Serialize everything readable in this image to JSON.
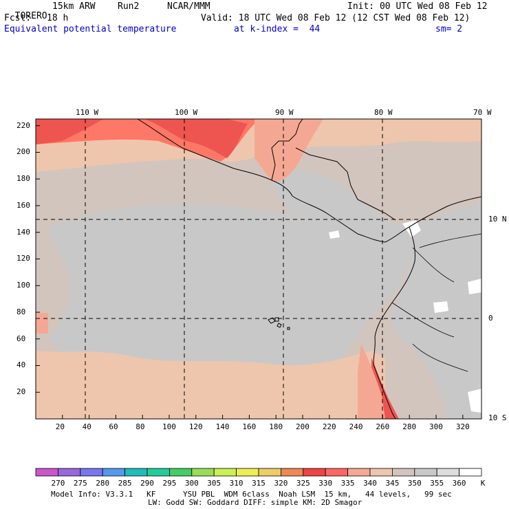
{
  "header": {
    "model": "TORERO",
    "resolution": "15km ARW",
    "run": "Run2",
    "org": "NCAR/MMM",
    "init": "Init: 00 UTC Wed 08 Feb 12",
    "fcst_label": "Fcst:",
    "fcst_hours": "18 h",
    "valid": "Valid: 18 UTC Wed 08 Feb 12 (12 CST Wed 08 Feb 12)",
    "field": "Equivalent potential temperature",
    "level": "at k-index =  44",
    "smoothing": "sm= 2"
  },
  "map": {
    "top_lon_labels": [
      "110 W",
      "100 W",
      "90 W",
      "80 W",
      "70 W"
    ],
    "right_lat_labels": [
      "10 N",
      "0",
      "10 S"
    ],
    "y_ticks": [
      "220",
      "200",
      "180",
      "160",
      "140",
      "120",
      "100",
      "80",
      "60",
      "40",
      "20"
    ],
    "x_ticks": [
      "20",
      "40",
      "60",
      "80",
      "100",
      "120",
      "140",
      "160",
      "180",
      "200",
      "220",
      "240",
      "260",
      "280",
      "300",
      "320"
    ]
  },
  "colorbar": {
    "values": [
      "270",
      "275",
      "280",
      "285",
      "290",
      "295",
      "300",
      "305",
      "310",
      "315",
      "320",
      "325",
      "330",
      "335",
      "340",
      "345",
      "350",
      "355",
      "360"
    ],
    "unit": "K",
    "colors": [
      "#cc55cc",
      "#9966dd",
      "#7777ee",
      "#5599ee",
      "#22bbbb",
      "#22cc99",
      "#44cc66",
      "#99dd55",
      "#ccee55",
      "#eeee55",
      "#eecc66",
      "#ee8855",
      "#ee4444",
      "#ff6666",
      "#f4a894",
      "#eec6ad",
      "#d2c5bd",
      "#c8c8c8",
      "#dcdcdc",
      "#ffffff"
    ]
  },
  "footer": {
    "line1": "Model Info: V3.3.1   KF      YSU PBL  WDM 6class  Noah LSM  15 km,   44 levels,   99 sec",
    "line2": "LW: Godd SW: Goddard DIFF: simple KM: 2D Smagor"
  }
}
